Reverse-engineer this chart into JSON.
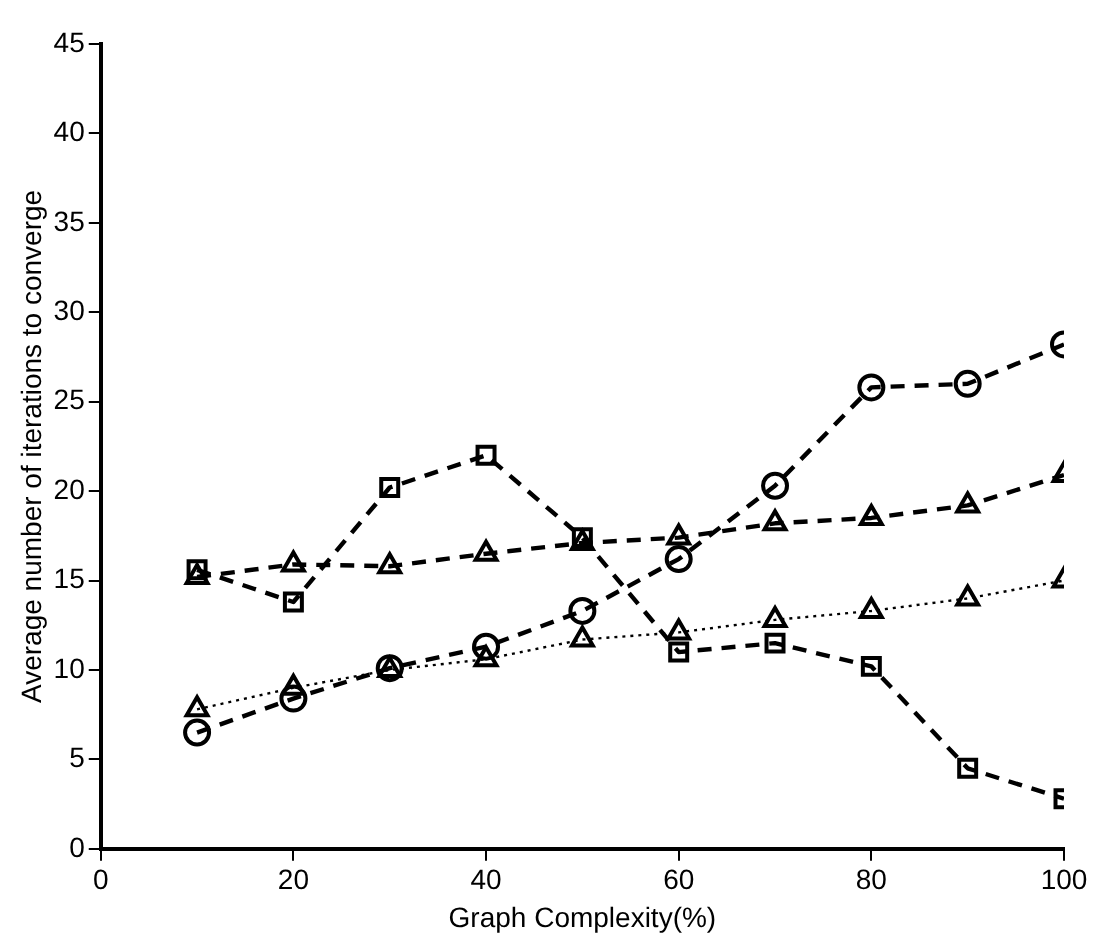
{
  "chart_data": {
    "type": "line",
    "xlabel": "Graph Complexity(%)",
    "ylabel": "Average number of iterations to converge",
    "x": [
      10,
      20,
      30,
      40,
      50,
      60,
      70,
      80,
      90,
      100
    ],
    "xlim": [
      0,
      100
    ],
    "xticks": [
      0,
      20,
      40,
      60,
      80,
      100
    ],
    "ylim": [
      0,
      45
    ],
    "yticks": [
      0,
      5,
      10,
      15,
      20,
      25,
      30,
      35,
      40,
      45
    ],
    "grid": false,
    "legend": false,
    "series": [
      {
        "color": "#000000",
        "marker": "square",
        "line_style": "dashed",
        "values": [
          15.6,
          13.8,
          20.2,
          22,
          17.4,
          11,
          11.5,
          10.2,
          4.5,
          2.8
        ]
      },
      {
        "color": "#000000",
        "marker": "circle",
        "line_style": "dashed",
        "values": [
          6.5,
          8.4,
          10.1,
          11.3,
          13.3,
          16.2,
          20.3,
          25.8,
          26,
          28.2
        ]
      },
      {
        "color": "#000000",
        "marker": "triangle",
        "line_style": "dashed",
        "values": [
          15.2,
          15.9,
          15.8,
          16.5,
          17.1,
          17.4,
          18.2,
          18.5,
          19.2,
          20.9
        ]
      },
      {
        "color": "#000000",
        "marker": "triangle",
        "line_style": "dotted",
        "values": [
          7.8,
          9,
          10,
          10.6,
          11.7,
          12.1,
          12.8,
          13.3,
          14,
          15
        ]
      }
    ]
  }
}
